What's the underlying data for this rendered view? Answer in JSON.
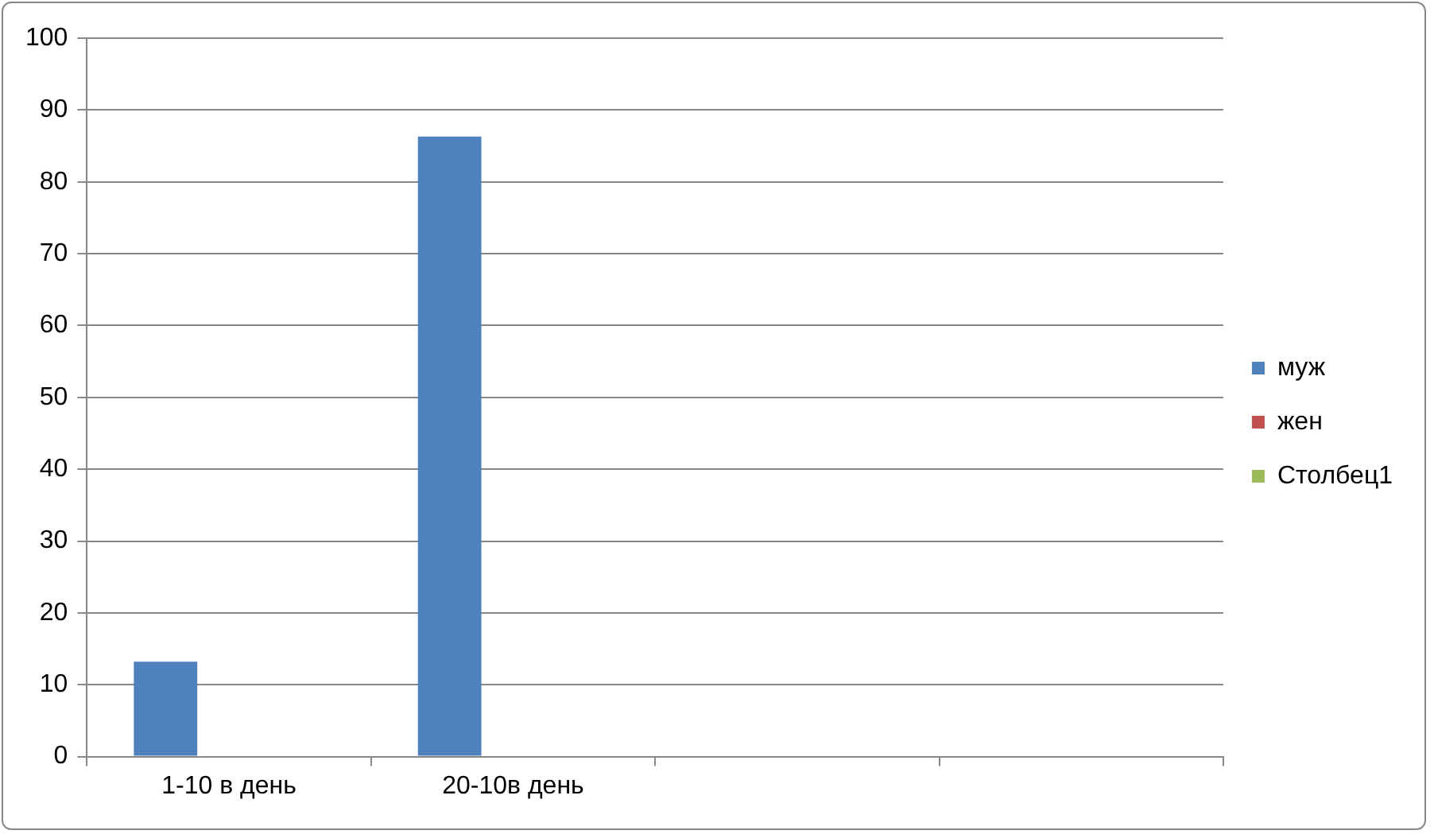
{
  "chart_data": {
    "type": "bar",
    "categories": [
      "1-10 в день",
      "20-10в день",
      null,
      null
    ],
    "series": [
      {
        "name": "муж",
        "color": "#4f81bd",
        "values": [
          13.2,
          86.3,
          null,
          null
        ]
      },
      {
        "name": "жен",
        "color": "#c0504d",
        "values": [
          null,
          null,
          null,
          null
        ]
      },
      {
        "name": "Столбец1",
        "color": "#9bbb59",
        "values": [
          null,
          null,
          null,
          null
        ]
      }
    ],
    "ylim": [
      0,
      100
    ],
    "yticks": [
      0,
      10,
      20,
      30,
      40,
      50,
      60,
      70,
      80,
      90,
      100
    ],
    "grid": "y",
    "legend": "right"
  }
}
